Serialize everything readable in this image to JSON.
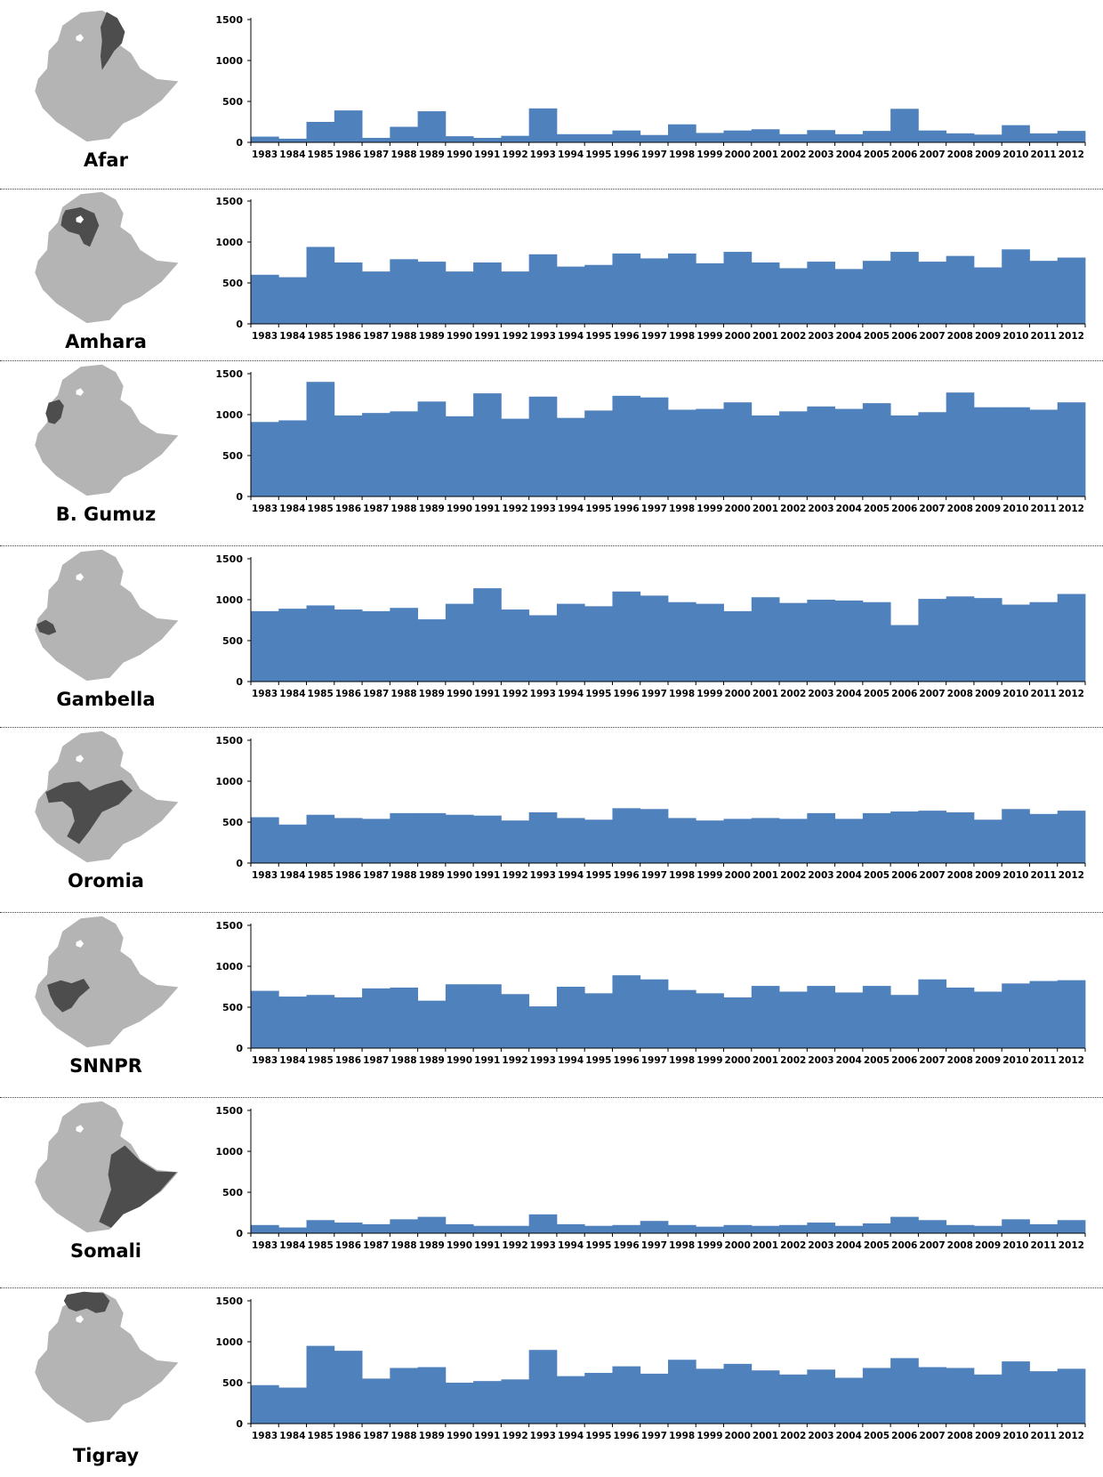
{
  "chart_data": [
    {
      "type": "bar",
      "region": "Afar",
      "categories": [
        "1983",
        "1984",
        "1985",
        "1986",
        "1987",
        "1988",
        "1989",
        "1990",
        "1991",
        "1992",
        "1993",
        "1994",
        "1995",
        "1996",
        "1997",
        "1998",
        "1999",
        "2000",
        "2001",
        "2002",
        "2003",
        "2004",
        "2005",
        "2006",
        "2007",
        "2008",
        "2009",
        "2010",
        "2011",
        "2012"
      ],
      "values": [
        70,
        45,
        250,
        390,
        55,
        190,
        380,
        75,
        55,
        80,
        415,
        100,
        100,
        145,
        90,
        220,
        115,
        145,
        160,
        100,
        150,
        100,
        140,
        410,
        145,
        110,
        95,
        210,
        110,
        140
      ],
      "yticks": [
        0,
        500,
        1000,
        1500
      ],
      "ylim": [
        0,
        1500
      ],
      "color": "#4f81bd",
      "highlight_color": "#4d4d4d"
    },
    {
      "type": "bar",
      "region": "Amhara",
      "categories": [
        "1983",
        "1984",
        "1985",
        "1986",
        "1987",
        "1988",
        "1989",
        "1990",
        "1991",
        "1992",
        "1993",
        "1994",
        "1995",
        "1996",
        "1997",
        "1998",
        "1999",
        "2000",
        "2001",
        "2002",
        "2003",
        "2004",
        "2005",
        "2006",
        "2007",
        "2008",
        "2009",
        "2010",
        "2011",
        "2012"
      ],
      "values": [
        600,
        570,
        940,
        750,
        640,
        790,
        760,
        640,
        750,
        640,
        850,
        700,
        720,
        860,
        800,
        860,
        740,
        880,
        750,
        680,
        760,
        670,
        770,
        880,
        760,
        830,
        690,
        910,
        770,
        810
      ],
      "yticks": [
        0,
        500,
        1000,
        1500
      ],
      "ylim": [
        0,
        1500
      ],
      "color": "#4f81bd",
      "highlight_color": "#4d4d4d"
    },
    {
      "type": "bar",
      "region": "B. Gumuz",
      "categories": [
        "1983",
        "1984",
        "1985",
        "1986",
        "1987",
        "1988",
        "1989",
        "1990",
        "1991",
        "1992",
        "1993",
        "1994",
        "1995",
        "1996",
        "1997",
        "1998",
        "1999",
        "2000",
        "2001",
        "2002",
        "2003",
        "2004",
        "2005",
        "2006",
        "2007",
        "2008",
        "2009",
        "2010",
        "2011",
        "2012"
      ],
      "values": [
        910,
        930,
        1400,
        990,
        1020,
        1040,
        1160,
        980,
        1260,
        950,
        1220,
        960,
        1050,
        1230,
        1210,
        1060,
        1070,
        1150,
        990,
        1040,
        1100,
        1070,
        1140,
        990,
        1030,
        1270,
        1090,
        1090,
        1060,
        1150
      ],
      "yticks": [
        0,
        500,
        1000,
        1500
      ],
      "ylim": [
        0,
        1500
      ],
      "color": "#4f81bd",
      "highlight_color": "#4d4d4d"
    },
    {
      "type": "bar",
      "region": "Gambella",
      "categories": [
        "1983",
        "1984",
        "1985",
        "1986",
        "1987",
        "1988",
        "1989",
        "1990",
        "1991",
        "1992",
        "1993",
        "1994",
        "1995",
        "1996",
        "1997",
        "1998",
        "1999",
        "2000",
        "2001",
        "2002",
        "2003",
        "2004",
        "2005",
        "2006",
        "2007",
        "2008",
        "2009",
        "2010",
        "2011",
        "2012"
      ],
      "values": [
        860,
        890,
        930,
        880,
        860,
        900,
        760,
        950,
        1140,
        880,
        810,
        950,
        920,
        1100,
        1050,
        970,
        950,
        860,
        1030,
        960,
        1000,
        990,
        970,
        690,
        1010,
        1040,
        1020,
        940,
        970,
        1070
      ],
      "yticks": [
        0,
        500,
        1000,
        1500
      ],
      "ylim": [
        0,
        1500
      ],
      "color": "#4f81bd",
      "highlight_color": "#4d4d4d"
    },
    {
      "type": "bar",
      "region": "Oromia",
      "categories": [
        "1983",
        "1984",
        "1985",
        "1986",
        "1987",
        "1988",
        "1989",
        "1990",
        "1991",
        "1992",
        "1993",
        "1994",
        "1995",
        "1996",
        "1997",
        "1998",
        "1999",
        "2000",
        "2001",
        "2002",
        "2003",
        "2004",
        "2005",
        "2006",
        "2007",
        "2008",
        "2009",
        "2010",
        "2011",
        "2012"
      ],
      "values": [
        560,
        470,
        590,
        550,
        540,
        610,
        610,
        590,
        580,
        520,
        620,
        550,
        530,
        670,
        660,
        550,
        520,
        540,
        550,
        540,
        610,
        540,
        610,
        630,
        640,
        620,
        530,
        660,
        600,
        640
      ],
      "yticks": [
        0,
        500,
        1000,
        1500
      ],
      "ylim": [
        0,
        1500
      ],
      "color": "#4f81bd",
      "highlight_color": "#4d4d4d"
    },
    {
      "type": "bar",
      "region": "SNNPR",
      "categories": [
        "1983",
        "1984",
        "1985",
        "1986",
        "1987",
        "1988",
        "1989",
        "1990",
        "1991",
        "1992",
        "1993",
        "1994",
        "1995",
        "1996",
        "1997",
        "1998",
        "1999",
        "2000",
        "2001",
        "2002",
        "2003",
        "2004",
        "2005",
        "2006",
        "2007",
        "2008",
        "2009",
        "2010",
        "2011",
        "2012"
      ],
      "values": [
        700,
        630,
        650,
        620,
        730,
        740,
        580,
        780,
        780,
        660,
        510,
        750,
        670,
        890,
        840,
        710,
        670,
        620,
        760,
        690,
        760,
        680,
        760,
        650,
        840,
        740,
        690,
        790,
        820,
        830
      ],
      "yticks": [
        0,
        500,
        1000,
        1500
      ],
      "ylim": [
        0,
        1500
      ],
      "color": "#4f81bd",
      "highlight_color": "#4d4d4d"
    },
    {
      "type": "bar",
      "region": "Somali",
      "categories": [
        "1983",
        "1984",
        "1985",
        "1986",
        "1987",
        "1988",
        "1989",
        "1990",
        "1991",
        "1992",
        "1993",
        "1994",
        "1995",
        "1996",
        "1997",
        "1998",
        "1999",
        "2000",
        "2001",
        "2002",
        "2003",
        "2004",
        "2005",
        "2006",
        "2007",
        "2008",
        "2009",
        "2010",
        "2011",
        "2012"
      ],
      "values": [
        100,
        70,
        160,
        130,
        110,
        170,
        200,
        110,
        90,
        90,
        230,
        110,
        90,
        100,
        150,
        100,
        80,
        100,
        90,
        100,
        130,
        90,
        120,
        200,
        160,
        100,
        90,
        170,
        110,
        160
      ],
      "yticks": [
        0,
        500,
        1000,
        1500
      ],
      "ylim": [
        0,
        1500
      ],
      "color": "#4f81bd",
      "highlight_color": "#4d4d4d"
    },
    {
      "type": "bar",
      "region": "Tigray",
      "categories": [
        "1983",
        "1984",
        "1985",
        "1986",
        "1987",
        "1988",
        "1989",
        "1990",
        "1991",
        "1992",
        "1993",
        "1994",
        "1995",
        "1996",
        "1997",
        "1998",
        "1999",
        "2000",
        "2001",
        "2002",
        "2003",
        "2004",
        "2005",
        "2006",
        "2007",
        "2008",
        "2009",
        "2010",
        "2011",
        "2012"
      ],
      "values": [
        470,
        440,
        950,
        890,
        550,
        680,
        690,
        500,
        520,
        540,
        900,
        580,
        620,
        700,
        610,
        780,
        670,
        730,
        650,
        600,
        660,
        560,
        680,
        800,
        690,
        680,
        600,
        760,
        640,
        670
      ],
      "yticks": [
        0,
        500,
        1000,
        1500
      ],
      "ylim": [
        0,
        1500
      ],
      "color": "#4f81bd",
      "highlight_color": "#4d4d4d"
    }
  ]
}
